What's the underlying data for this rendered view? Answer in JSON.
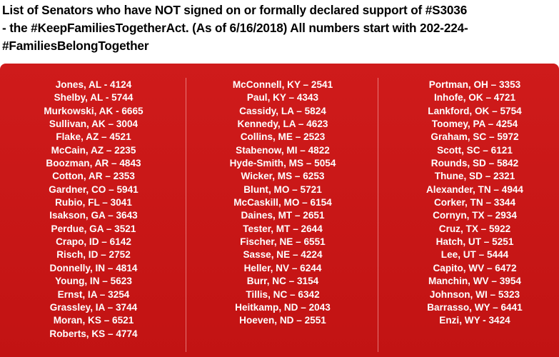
{
  "header": {
    "line1": "List of Senators who have NOT signed on or formally declared support of #S3036",
    "line2": "- the #KeepFamiliesTogetherAct.  (As of 6/16/2018) All numbers start with 202-224-",
    "line3": "#FamiliesBelongTogether"
  },
  "colors": {
    "panel_background": "#c8161b",
    "panel_text": "#ffffff",
    "header_text": "#000000"
  },
  "columns": [
    [
      "Jones, AL -  4124",
      "Shelby, AL - 5744",
      "Murkowski, AK - 6665",
      "Sullivan, AK – 3004",
      "Flake, AZ – 4521",
      "McCain, AZ – 2235",
      "Boozman, AR – 4843",
      "Cotton, AR – 2353",
      "Gardner, CO – 5941",
      "Rubio, FL – 3041",
      "Isakson, GA – 3643",
      "Perdue, GA – 3521",
      "Crapo, ID – 6142",
      "Risch, ID – 2752",
      "Donnelly, IN – 4814",
      "Young, IN – 5623",
      "Ernst, IA – 3254",
      "Grassley, IA – 3744",
      "Moran, KS – 6521",
      "Roberts, KS – 4774"
    ],
    [
      "McConnell, KY – 2541",
      "Paul, KY – 4343",
      "Cassidy, LA – 5824",
      "Kennedy, LA – 4623",
      "Collins, ME – 2523",
      "Stabenow, MI – 4822",
      "Hyde-Smith, MS – 5054",
      "Wicker, MS – 6253",
      "Blunt, MO – 5721",
      "McCaskill, MO – 6154",
      "Daines, MT – 2651",
      "Tester, MT – 2644",
      "Fischer, NE – 6551",
      "Sasse, NE – 4224",
      "Heller, NV – 6244",
      "Burr, NC – 3154",
      "Tillis, NC – 6342",
      "Heitkamp, ND – 2043",
      "Hoeven, ND – 2551"
    ],
    [
      "Portman, OH – 3353",
      "Inhofe, OK – 4721",
      "Lankford, OK – 5754",
      "Toomey, PA – 4254",
      "Graham, SC – 5972",
      "Scott, SC – 6121",
      "Rounds, SD – 5842",
      "Thune, SD – 2321",
      "Alexander, TN – 4944",
      "Corker, TN – 3344",
      "Cornyn, TX – 2934",
      "Cruz, TX – 5922",
      "Hatch, UT – 5251",
      "Lee, UT – 5444",
      "Capito, WV – 6472",
      "Manchin, WV – 3954",
      "Johnson, WI – 5323",
      "Barrasso, WY – 6441",
      "Enzi, WY - 3424"
    ]
  ]
}
